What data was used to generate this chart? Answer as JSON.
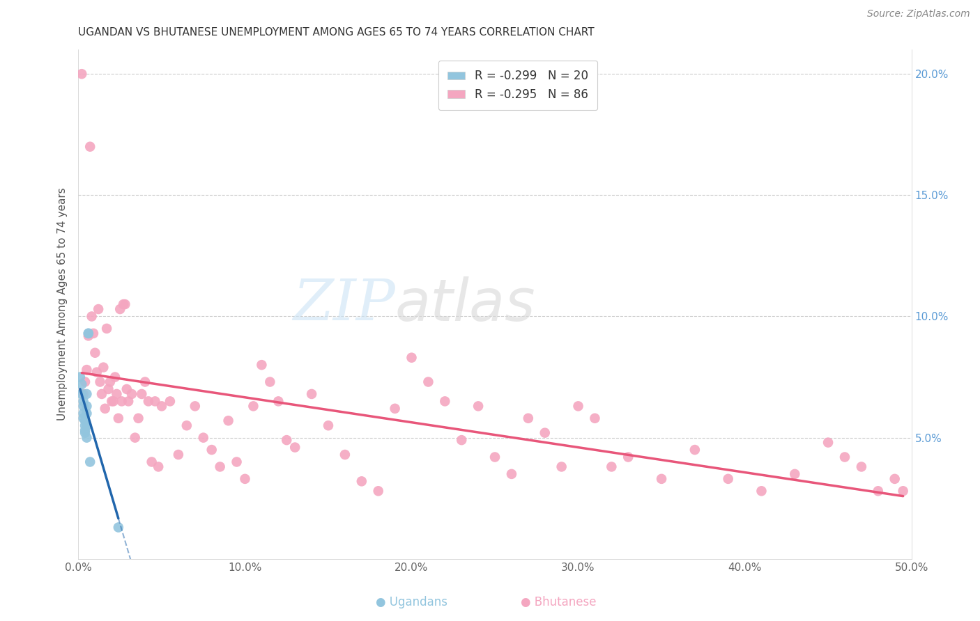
{
  "title": "UGANDAN VS BHUTANESE UNEMPLOYMENT AMONG AGES 65 TO 74 YEARS CORRELATION CHART",
  "source": "Source: ZipAtlas.com",
  "ylabel": "Unemployment Among Ages 65 to 74 years",
  "xlim": [
    0.0,
    0.5
  ],
  "ylim": [
    0.0,
    0.21
  ],
  "xticks": [
    0.0,
    0.1,
    0.2,
    0.3,
    0.4,
    0.5
  ],
  "xticklabels": [
    "0.0%",
    "10.0%",
    "20.0%",
    "30.0%",
    "40.0%",
    "50.0%"
  ],
  "yticks_left": [
    0.05,
    0.1,
    0.15,
    0.2
  ],
  "yticklabels_left": [
    "5.0%",
    "10.0%",
    "15.0%",
    "20.0%"
  ],
  "yticks_right": [
    0.05,
    0.1,
    0.15,
    0.2
  ],
  "yticklabels_right": [
    "5.0%",
    "10.0%",
    "15.0%",
    "20.0%"
  ],
  "legend_ugandan": "R = -0.299   N = 20",
  "legend_bhutanese": "R = -0.295   N = 86",
  "ugandan_color": "#92c5de",
  "bhutanese_color": "#f4a6c0",
  "ugandan_line_color": "#2166ac",
  "bhutanese_line_color": "#e8567a",
  "ugandan_x": [
    0.001,
    0.002,
    0.002,
    0.003,
    0.003,
    0.003,
    0.003,
    0.004,
    0.004,
    0.004,
    0.004,
    0.005,
    0.005,
    0.005,
    0.005,
    0.005,
    0.006,
    0.006,
    0.007,
    0.024
  ],
  "ugandan_y": [
    0.075,
    0.068,
    0.072,
    0.065,
    0.063,
    0.06,
    0.058,
    0.057,
    0.055,
    0.053,
    0.052,
    0.068,
    0.063,
    0.06,
    0.055,
    0.05,
    0.093,
    0.093,
    0.04,
    0.013
  ],
  "bhutanese_x": [
    0.002,
    0.003,
    0.004,
    0.005,
    0.006,
    0.007,
    0.008,
    0.009,
    0.01,
    0.011,
    0.012,
    0.013,
    0.014,
    0.015,
    0.016,
    0.017,
    0.018,
    0.019,
    0.02,
    0.021,
    0.022,
    0.023,
    0.024,
    0.025,
    0.026,
    0.027,
    0.028,
    0.029,
    0.03,
    0.032,
    0.034,
    0.036,
    0.038,
    0.04,
    0.042,
    0.044,
    0.046,
    0.048,
    0.05,
    0.055,
    0.06,
    0.065,
    0.07,
    0.075,
    0.08,
    0.085,
    0.09,
    0.095,
    0.1,
    0.105,
    0.11,
    0.115,
    0.12,
    0.125,
    0.13,
    0.14,
    0.15,
    0.16,
    0.17,
    0.18,
    0.19,
    0.2,
    0.21,
    0.22,
    0.23,
    0.24,
    0.25,
    0.26,
    0.27,
    0.28,
    0.29,
    0.3,
    0.31,
    0.32,
    0.33,
    0.35,
    0.37,
    0.39,
    0.41,
    0.43,
    0.45,
    0.46,
    0.47,
    0.48,
    0.49,
    0.495
  ],
  "bhutanese_y": [
    0.2,
    0.068,
    0.073,
    0.078,
    0.092,
    0.17,
    0.1,
    0.093,
    0.085,
    0.077,
    0.103,
    0.073,
    0.068,
    0.079,
    0.062,
    0.095,
    0.07,
    0.073,
    0.065,
    0.065,
    0.075,
    0.068,
    0.058,
    0.103,
    0.065,
    0.105,
    0.105,
    0.07,
    0.065,
    0.068,
    0.05,
    0.058,
    0.068,
    0.073,
    0.065,
    0.04,
    0.065,
    0.038,
    0.063,
    0.065,
    0.043,
    0.055,
    0.063,
    0.05,
    0.045,
    0.038,
    0.057,
    0.04,
    0.033,
    0.063,
    0.08,
    0.073,
    0.065,
    0.049,
    0.046,
    0.068,
    0.055,
    0.043,
    0.032,
    0.028,
    0.062,
    0.083,
    0.073,
    0.065,
    0.049,
    0.063,
    0.042,
    0.035,
    0.058,
    0.052,
    0.038,
    0.063,
    0.058,
    0.038,
    0.042,
    0.033,
    0.045,
    0.033,
    0.028,
    0.035,
    0.048,
    0.042,
    0.038,
    0.028,
    0.033,
    0.028
  ],
  "title_fontsize": 11,
  "axis_label_fontsize": 11,
  "tick_fontsize": 11,
  "source_fontsize": 10
}
